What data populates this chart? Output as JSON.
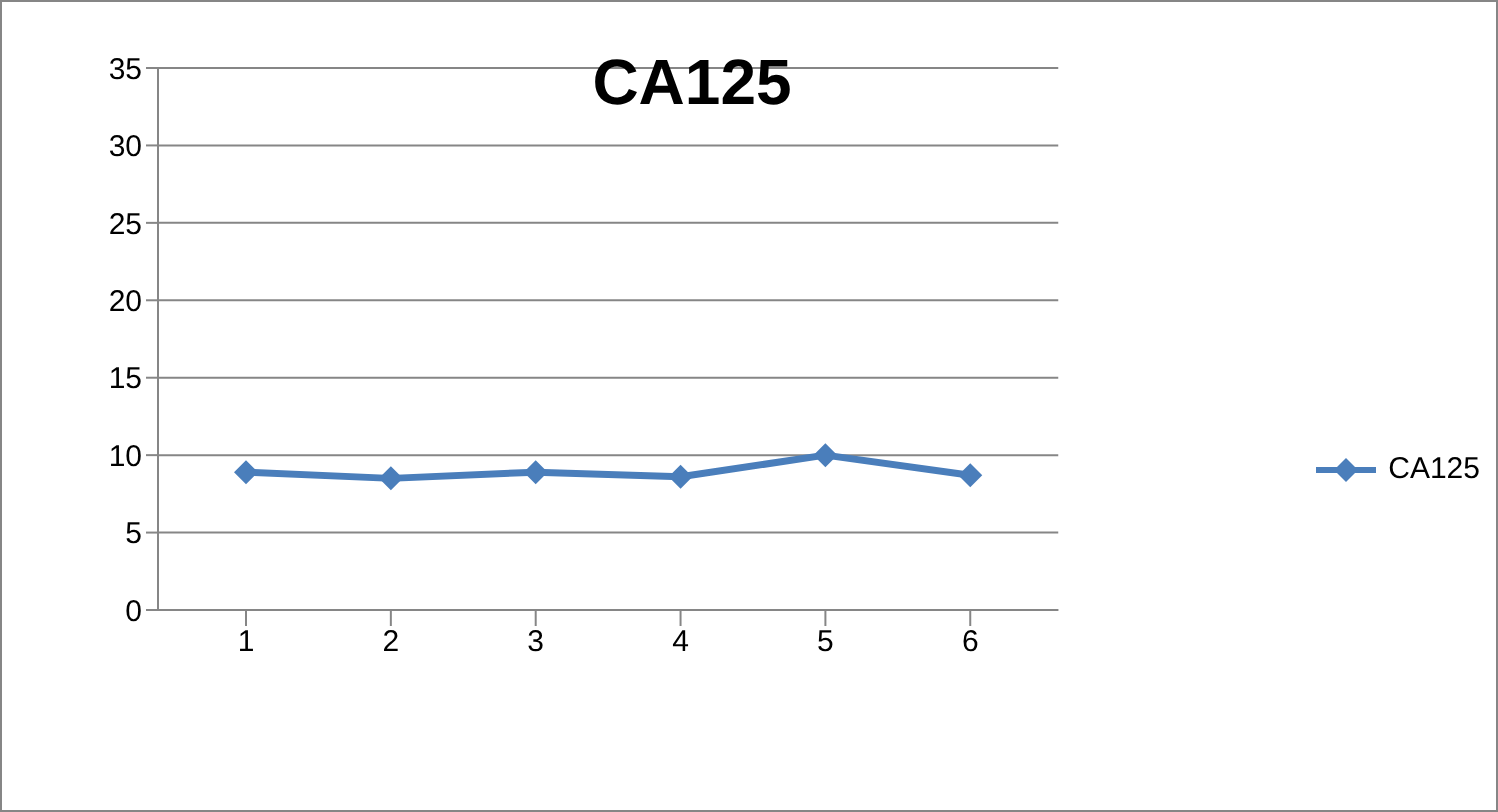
{
  "chart_data": {
    "type": "line",
    "title": "CA125",
    "categories": [
      "1",
      "2",
      "3",
      "4",
      "5",
      "6"
    ],
    "series": [
      {
        "name": "CA125",
        "color": "#4a7ebb",
        "values": [
          8.9,
          8.5,
          8.9,
          8.6,
          10.0,
          8.7
        ]
      }
    ],
    "ylim": [
      0,
      35
    ],
    "yticks": [
      0,
      5,
      10,
      15,
      20,
      25,
      30,
      35
    ],
    "grid": "y",
    "legend": "right",
    "marker": "diamond",
    "line_style": "solid"
  }
}
